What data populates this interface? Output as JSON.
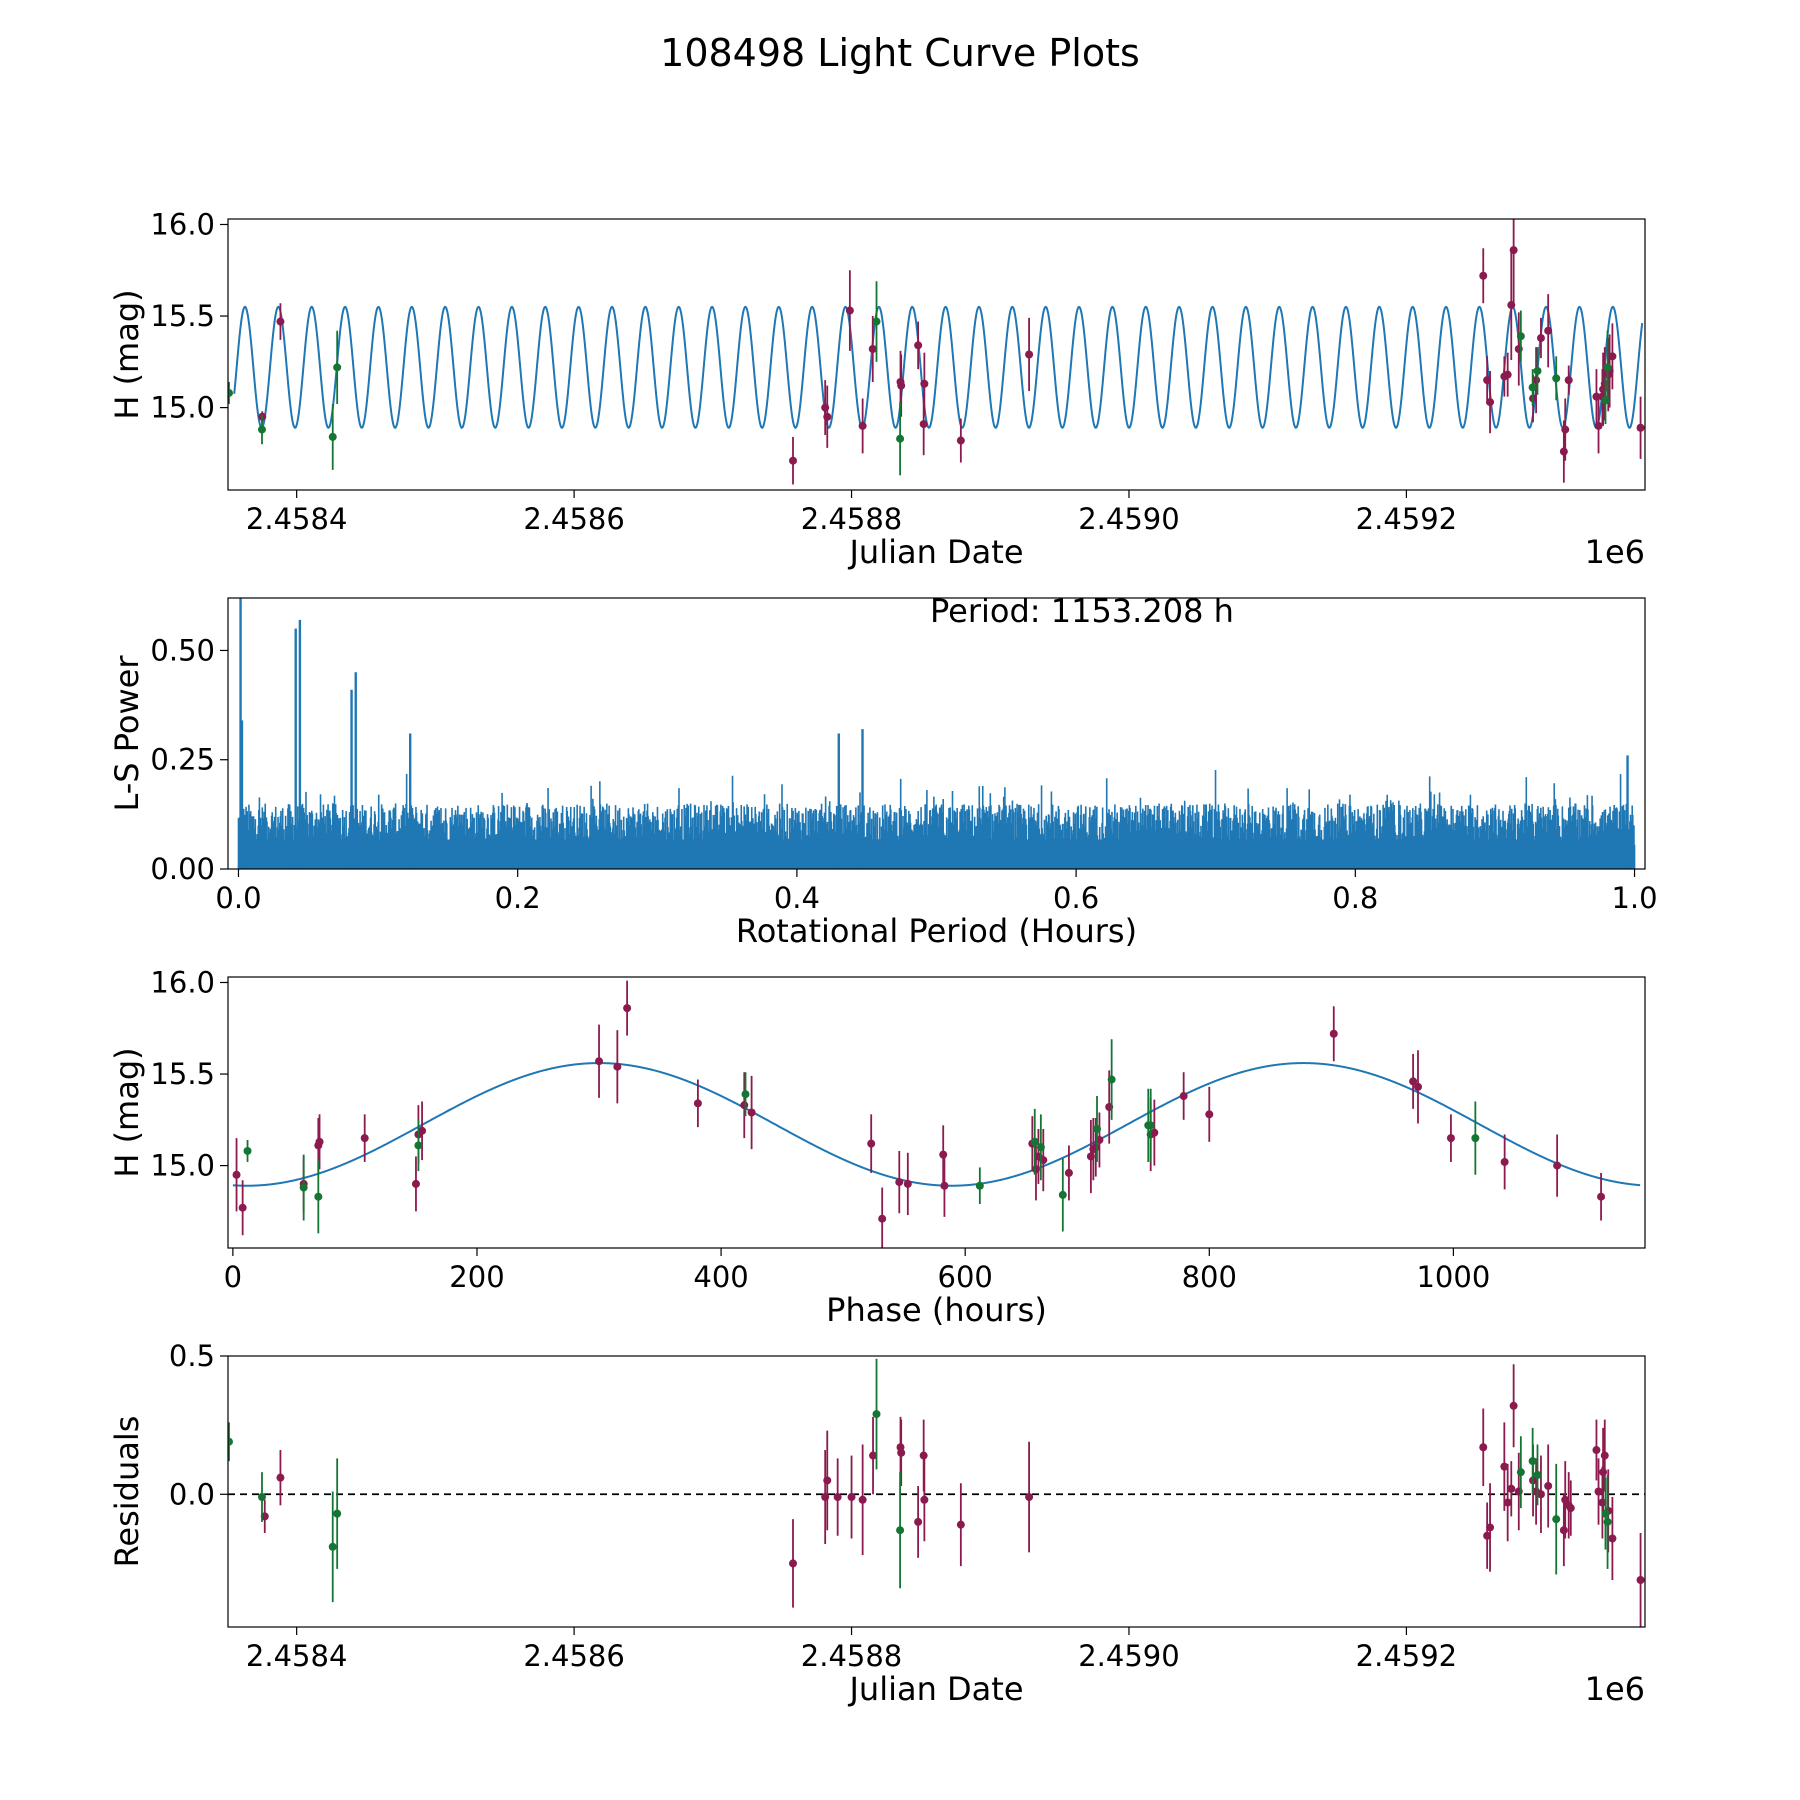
{
  "figure": {
    "title": "108498 Light Curve Plots"
  },
  "colors": {
    "model": "#1f77b4",
    "periodogram": "#1f77b4",
    "filter_o": "#8b1a4e",
    "filter_c": "#157533",
    "zero_line": "#000000"
  },
  "chart_data": [
    {
      "id": "lightcurve",
      "type": "scatter",
      "xlabel": "Julian Date",
      "ylabel": "H (mag)",
      "offset_label": "1e6",
      "xlim": [
        2458350.5,
        2459372
      ],
      "ylim": [
        14.55,
        16.03
      ],
      "xticks": [
        2458400,
        2458600,
        2458800,
        2459000,
        2459200
      ],
      "xtick_labels": [
        "2.4584",
        "2.4586",
        "2.4588",
        "2.4590",
        "2.4592"
      ],
      "yticks": [
        15.0,
        15.5,
        16.0
      ],
      "ytick_labels": [
        "15.0",
        "15.5",
        "16.0"
      ],
      "model": {
        "mean": 15.22,
        "amplitude": 0.33,
        "period_days": 24.0505,
        "peak_jd": 2458362.75,
        "x_start": 2458355,
        "x_end": 2459370
      },
      "series": [
        {
          "name": "o",
          "color_key": "filter_o",
          "points": [
            [
              2458375.2,
              14.95,
              0.03
            ],
            [
              2458388.3,
              15.47,
              0.1
            ],
            [
              2458757.8,
              14.71,
              0.13
            ],
            [
              2458781.0,
              15.0,
              0.15
            ],
            [
              2458782.5,
              14.95,
              0.17
            ],
            [
              2458798.8,
              15.53,
              0.22
            ],
            [
              2458808.0,
              14.9,
              0.15
            ],
            [
              2458815.3,
              15.32,
              0.18
            ],
            [
              2458835.3,
              15.14,
              0.17
            ],
            [
              2458835.8,
              15.12,
              0.17
            ],
            [
              2458848.0,
              15.34,
              0.13
            ],
            [
              2458852.0,
              14.91,
              0.17
            ],
            [
              2458852.5,
              15.13,
              0.17
            ],
            [
              2458878.8,
              14.82,
              0.12
            ],
            [
              2458928.0,
              15.29,
              0.2
            ],
            [
              2459255.4,
              15.72,
              0.15
            ],
            [
              2459258.2,
              15.15,
              0.13
            ],
            [
              2459260.3,
              15.03,
              0.17
            ],
            [
              2459270.6,
              15.17,
              0.11
            ],
            [
              2459273.0,
              15.18,
              0.12
            ],
            [
              2459275.6,
              15.56,
              0.3
            ],
            [
              2459277.3,
              15.86,
              0.3
            ],
            [
              2459281.0,
              15.32,
              0.2
            ],
            [
              2459291.3,
              15.05,
              0.13
            ],
            [
              2459293.5,
              15.15,
              0.18
            ],
            [
              2459297.0,
              15.38,
              0.11
            ],
            [
              2459302.2,
              15.42,
              0.2
            ],
            [
              2459313.5,
              14.76,
              0.17
            ],
            [
              2459314.5,
              14.88,
              0.17
            ],
            [
              2459317.0,
              15.15,
              0.08
            ],
            [
              2459337.0,
              15.06,
              0.15
            ],
            [
              2459338.5,
              14.9,
              0.15
            ],
            [
              2459341.3,
              15.06,
              0.15
            ],
            [
              2459341.8,
              15.1,
              0.2
            ],
            [
              2459343.0,
              15.13,
              0.2
            ],
            [
              2459345.5,
              15.18,
              0.2
            ],
            [
              2459346.5,
              15.2,
              0.2
            ],
            [
              2459348.5,
              15.28,
              0.18
            ],
            [
              2459368.8,
              14.89,
              0.17
            ]
          ]
        },
        {
          "name": "c",
          "color_key": "filter_c",
          "points": [
            [
              2458351.2,
              15.08,
              0.06
            ],
            [
              2458375.0,
              14.88,
              0.08
            ],
            [
              2458426.0,
              14.84,
              0.18
            ],
            [
              2458429.2,
              15.22,
              0.2
            ],
            [
              2458818.0,
              15.47,
              0.22
            ],
            [
              2458835.0,
              14.83,
              0.2
            ],
            [
              2459282.5,
              15.39,
              0.14
            ],
            [
              2459291.0,
              15.11,
              0.1
            ],
            [
              2459294.5,
              15.2,
              0.13
            ],
            [
              2459308.0,
              15.16,
              0.12
            ],
            [
              2459343.5,
              15.04,
              0.13
            ],
            [
              2459345.0,
              15.22,
              0.2
            ]
          ]
        }
      ]
    },
    {
      "id": "periodogram",
      "type": "line",
      "annotation": "Period: 1153.208 h",
      "xlabel": "Rotational Period (Hours)",
      "ylabel": "L-S Power",
      "xlim": [
        -0.0075,
        1.0075
      ],
      "ylim": [
        0,
        0.62
      ],
      "xticks": [
        0.0,
        0.2,
        0.4,
        0.6,
        0.8,
        1.0
      ],
      "xtick_labels": [
        "0.0",
        "0.2",
        "0.4",
        "0.6",
        "0.8",
        "1.0"
      ],
      "yticks": [
        0.0,
        0.25,
        0.5
      ],
      "ytick_labels": [
        "0.00",
        "0.25",
        "0.50"
      ],
      "baseline": 0.15,
      "baseline_noise": 0.06,
      "peaks": [
        [
          0.0015,
          0.62
        ],
        [
          0.0025,
          0.34
        ],
        [
          0.041,
          0.55
        ],
        [
          0.044,
          0.57
        ],
        [
          0.081,
          0.41
        ],
        [
          0.084,
          0.45
        ],
        [
          0.123,
          0.31
        ],
        [
          0.43,
          0.31
        ],
        [
          0.447,
          0.32
        ],
        [
          0.995,
          0.26
        ]
      ]
    },
    {
      "id": "phased",
      "type": "scatter",
      "xlabel": "Phase (hours)",
      "ylabel": "H (mag)",
      "xlim": [
        -4,
        1157
      ],
      "ylim": [
        14.55,
        16.03
      ],
      "xticks": [
        0,
        200,
        400,
        600,
        800,
        1000
      ],
      "xtick_labels": [
        "0",
        "200",
        "400",
        "600",
        "800",
        "1000"
      ],
      "yticks": [
        15.0,
        15.5,
        16.0
      ],
      "ytick_labels": [
        "15.0",
        "15.5",
        "16.0"
      ],
      "model": {
        "mean": 15.225,
        "amplitude": 0.335,
        "period_hours": 577.2,
        "peak_hours": 300,
        "x_start": 0,
        "x_end": 1153
      },
      "series": [
        {
          "name": "o",
          "color_key": "filter_o",
          "points": [
            [
              3,
              14.95,
              0.2
            ],
            [
              8,
              14.77,
              0.15
            ],
            [
              58,
              14.9,
              0.15
            ],
            [
              70,
              15.11,
              0.15
            ],
            [
              71,
              15.13,
              0.15
            ],
            [
              108,
              15.15,
              0.13
            ],
            [
              150,
              14.9,
              0.15
            ],
            [
              152,
              15.17,
              0.16
            ],
            [
              155,
              15.19,
              0.16
            ],
            [
              300,
              15.57,
              0.2
            ],
            [
              315,
              15.54,
              0.2
            ],
            [
              323,
              15.86,
              0.15
            ],
            [
              381,
              15.34,
              0.13
            ],
            [
              419,
              15.33,
              0.18
            ],
            [
              425,
              15.29,
              0.2
            ],
            [
              523,
              15.12,
              0.16
            ],
            [
              532,
              14.71,
              0.17
            ],
            [
              546,
              14.91,
              0.17
            ],
            [
              553,
              14.9,
              0.17
            ],
            [
              582,
              15.06,
              0.16
            ],
            [
              583,
              14.89,
              0.17
            ],
            [
              655,
              15.12,
              0.15
            ],
            [
              658,
              14.98,
              0.17
            ],
            [
              660,
              15.05,
              0.15
            ],
            [
              664,
              15.03,
              0.17
            ],
            [
              685,
              14.96,
              0.15
            ],
            [
              703,
              15.05,
              0.2
            ],
            [
              705,
              15.09,
              0.17
            ],
            [
              707,
              15.1,
              0.16
            ],
            [
              710,
              15.14,
              0.15
            ],
            [
              718,
              15.32,
              0.2
            ],
            [
              752,
              15.17,
              0.2
            ],
            [
              755,
              15.18,
              0.18
            ],
            [
              779,
              15.38,
              0.13
            ],
            [
              800,
              15.28,
              0.15
            ],
            [
              902,
              15.72,
              0.15
            ],
            [
              967,
              15.46,
              0.15
            ],
            [
              971,
              15.43,
              0.2
            ],
            [
              998,
              15.15,
              0.13
            ],
            [
              1042,
              15.02,
              0.15
            ],
            [
              1085,
              15.0,
              0.17
            ],
            [
              1121,
              14.83,
              0.13
            ]
          ]
        },
        {
          "name": "c",
          "color_key": "filter_c",
          "points": [
            [
              12,
              15.08,
              0.06
            ],
            [
              58,
              14.88,
              0.18
            ],
            [
              70,
              14.83,
              0.2
            ],
            [
              152,
              15.11,
              0.14
            ],
            [
              420,
              15.39,
              0.12
            ],
            [
              612,
              14.89,
              0.1
            ],
            [
              657,
              15.13,
              0.18
            ],
            [
              662,
              15.1,
              0.18
            ],
            [
              680,
              14.84,
              0.2
            ],
            [
              708,
              15.2,
              0.18
            ],
            [
              720,
              15.47,
              0.22
            ],
            [
              750,
              15.22,
              0.2
            ],
            [
              752,
              15.22,
              0.2
            ],
            [
              1018,
              15.15,
              0.2
            ]
          ]
        }
      ]
    },
    {
      "id": "residuals",
      "type": "scatter",
      "xlabel": "Julian Date",
      "ylabel": "Residuals",
      "offset_label": "1e6",
      "xlim": [
        2458350.5,
        2459372
      ],
      "ylim": [
        -0.48,
        0.5
      ],
      "xticks": [
        2458400,
        2458600,
        2458800,
        2459000,
        2459200
      ],
      "xtick_labels": [
        "2.4584",
        "2.4586",
        "2.4588",
        "2.4590",
        "2.4592"
      ],
      "yticks": [
        0.0,
        0.5
      ],
      "ytick_labels": [
        "0.0",
        "0.5"
      ],
      "zero_line": 0.0,
      "series": [
        {
          "name": "o",
          "color_key": "filter_o",
          "points": [
            [
              2458377.0,
              -0.08,
              0.06
            ],
            [
              2458388.3,
              0.06,
              0.1
            ],
            [
              2458757.8,
              -0.25,
              0.16
            ],
            [
              2458781.0,
              -0.01,
              0.17
            ],
            [
              2458782.5,
              0.05,
              0.18
            ],
            [
              2458790.0,
              -0.01,
              0.14
            ],
            [
              2458800.0,
              -0.01,
              0.15
            ],
            [
              2458808.0,
              -0.02,
              0.2
            ],
            [
              2458815.5,
              0.14,
              0.14
            ],
            [
              2458835.3,
              0.17,
              0.11
            ],
            [
              2458835.8,
              0.15,
              0.12
            ],
            [
              2458848.0,
              -0.1,
              0.13
            ],
            [
              2458852.0,
              0.14,
              0.13
            ],
            [
              2458852.5,
              -0.02,
              0.15
            ],
            [
              2458878.8,
              -0.11,
              0.15
            ],
            [
              2458928.0,
              -0.01,
              0.2
            ],
            [
              2459255.4,
              0.17,
              0.14
            ],
            [
              2459258.2,
              -0.15,
              0.12
            ],
            [
              2459260.3,
              -0.12,
              0.16
            ],
            [
              2459270.6,
              0.1,
              0.16
            ],
            [
              2459273.0,
              -0.03,
              0.14
            ],
            [
              2459275.6,
              0.02,
              0.1
            ],
            [
              2459277.3,
              0.32,
              0.15
            ],
            [
              2459281.0,
              0.01,
              0.14
            ],
            [
              2459291.3,
              0.05,
              0.13
            ],
            [
              2459293.5,
              0.01,
              0.12
            ],
            [
              2459297.0,
              0.0,
              0.14
            ],
            [
              2459302.2,
              0.03,
              0.15
            ],
            [
              2459313.5,
              -0.13,
              0.13
            ],
            [
              2459314.5,
              -0.02,
              0.14
            ],
            [
              2459317.0,
              -0.04,
              0.12
            ],
            [
              2459318.5,
              -0.05,
              0.1
            ],
            [
              2459337.0,
              0.16,
              0.11
            ],
            [
              2459338.5,
              0.01,
              0.12
            ],
            [
              2459341.3,
              -0.03,
              0.13
            ],
            [
              2459341.8,
              0.08,
              0.16
            ],
            [
              2459343.0,
              0.14,
              0.13
            ],
            [
              2459345.5,
              -0.06,
              0.15
            ],
            [
              2459348.5,
              -0.16,
              0.15
            ],
            [
              2459368.8,
              -0.31,
              0.17
            ]
          ]
        },
        {
          "name": "c",
          "color_key": "filter_c",
          "points": [
            [
              2458351.2,
              0.19,
              0.07
            ],
            [
              2458375.0,
              -0.01,
              0.09
            ],
            [
              2458426.0,
              -0.19,
              0.2
            ],
            [
              2458429.2,
              -0.07,
              0.2
            ],
            [
              2458818.0,
              0.29,
              0.2
            ],
            [
              2458835.0,
              -0.13,
              0.21
            ],
            [
              2459282.5,
              0.08,
              0.13
            ],
            [
              2459291.0,
              0.12,
              0.12
            ],
            [
              2459294.5,
              0.07,
              0.11
            ],
            [
              2459308.0,
              -0.09,
              0.2
            ],
            [
              2459343.5,
              -0.07,
              0.13
            ],
            [
              2459345.0,
              -0.1,
              0.17
            ]
          ]
        }
      ]
    }
  ]
}
